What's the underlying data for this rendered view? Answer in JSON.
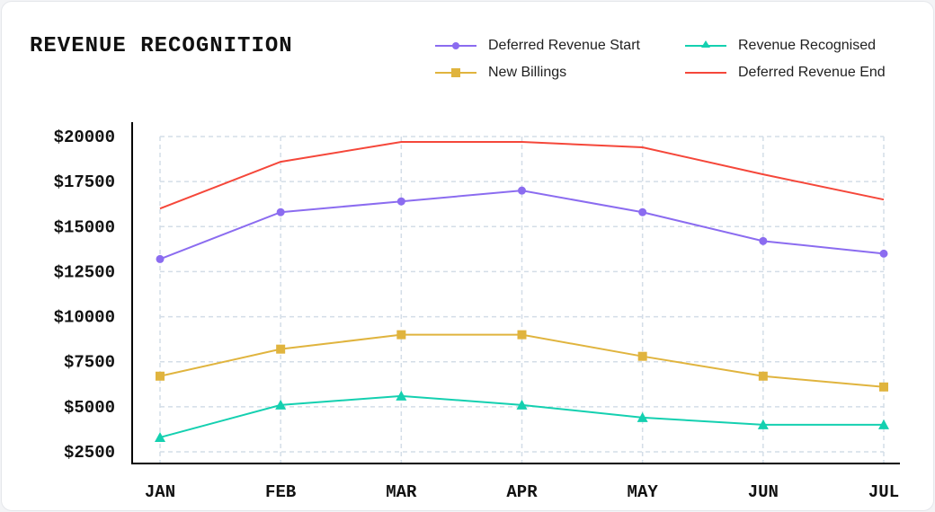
{
  "chart_data": {
    "type": "line",
    "title": "REVENUE RECOGNITION",
    "categories": [
      "JAN",
      "FEB",
      "MAR",
      "APR",
      "MAY",
      "JUN",
      "JUL"
    ],
    "ylim": [
      2500,
      20000
    ],
    "yticks": [
      2500,
      5000,
      7500,
      10000,
      12500,
      15000,
      17500,
      20000
    ],
    "ytick_labels": [
      "$2500",
      "$5000",
      "$7500",
      "$10000",
      "$12500",
      "$15000",
      "$17500",
      "$20000"
    ],
    "grid": true,
    "legend_position": "top-right",
    "series": [
      {
        "name": "Deferred Revenue Start",
        "color": "#8b6cf0",
        "marker": "circle",
        "values": [
          13200,
          15800,
          16400,
          17000,
          15800,
          14200,
          13500
        ]
      },
      {
        "name": "New Billings",
        "color": "#e0b43e",
        "marker": "square",
        "values": [
          6700,
          8200,
          9000,
          9000,
          7800,
          6700,
          6100
        ]
      },
      {
        "name": "Revenue Recognised",
        "color": "#14d0b0",
        "marker": "triangle",
        "values": [
          3300,
          5100,
          5600,
          5100,
          4400,
          4000,
          4000
        ]
      },
      {
        "name": "Deferred Revenue End",
        "color": "#f5473a",
        "marker": "none",
        "values": [
          16000,
          18600,
          19700,
          19700,
          19400,
          17900,
          16500
        ]
      }
    ]
  }
}
